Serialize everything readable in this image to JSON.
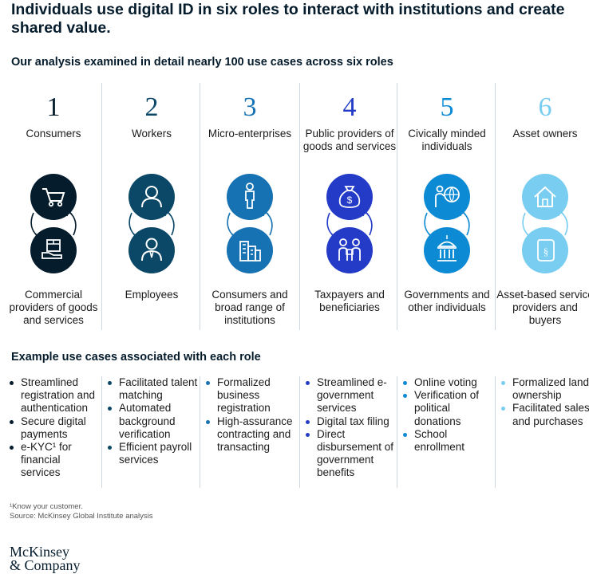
{
  "header": {
    "title": "Individuals use digital ID in six roles to interact with institutions and create shared value.",
    "subtitle": "Our analysis examined in detail nearly 100 use cases across six roles"
  },
  "roles": [
    {
      "number": "1",
      "role": "Consumers",
      "counterparty": "Commercial providers of goods and services",
      "color": "#051c2c",
      "icon_top": "shopping-cart-icon",
      "icon_bottom": "package-in-hand-icon"
    },
    {
      "number": "2",
      "role": "Workers",
      "counterparty": "Employees",
      "color": "#0b4867",
      "icon_top": "person-icon",
      "icon_bottom": "employee-icon"
    },
    {
      "number": "3",
      "role": "Micro-enterprises",
      "counterparty": "Consumers and broad range of institutions",
      "color": "#1772b3",
      "icon_top": "standing-person-icon",
      "icon_bottom": "buildings-icon"
    },
    {
      "number": "4",
      "role": "Public providers of goods and services",
      "counterparty": "Taxpayers and beneficiaries",
      "color": "#233bc7",
      "icon_top": "money-bag-icon",
      "icon_bottom": "people-exchange-icon"
    },
    {
      "number": "5",
      "role": "Civically minded individuals",
      "counterparty": "Governments and other individuals",
      "color": "#0d8ad4",
      "icon_top": "person-globe-icon",
      "icon_bottom": "government-building-icon"
    },
    {
      "number": "6",
      "role": "Asset owners",
      "counterparty": "Asset-based service providers and buyers",
      "color": "#78cdf0",
      "icon_top": "house-icon",
      "icon_bottom": "document-scroll-icon"
    }
  ],
  "use_cases_title": "Example use cases associated with each role",
  "use_cases": [
    [
      "Streamlined registration and authentication",
      "Secure digital payments",
      "e-KYC¹ for financial services"
    ],
    [
      "Facilitated talent matching",
      "Automated background verification",
      "Efficient payroll services"
    ],
    [
      "Formalized business registration",
      "High-assurance contracting and transacting"
    ],
    [
      "Streamlined e-government services",
      "Digital tax filing",
      "Direct disbursement of government benefits"
    ],
    [
      "Online voting",
      "Verification of political donations",
      "School enrollment"
    ],
    [
      "Formalized land ownership",
      "Facilitated sales and purchases"
    ]
  ],
  "footnote": {
    "note": "¹Know your customer.",
    "source": "Source: McKinsey Global Institute analysis"
  },
  "logo": {
    "line1": "McKinsey",
    "line2": "& Company"
  }
}
